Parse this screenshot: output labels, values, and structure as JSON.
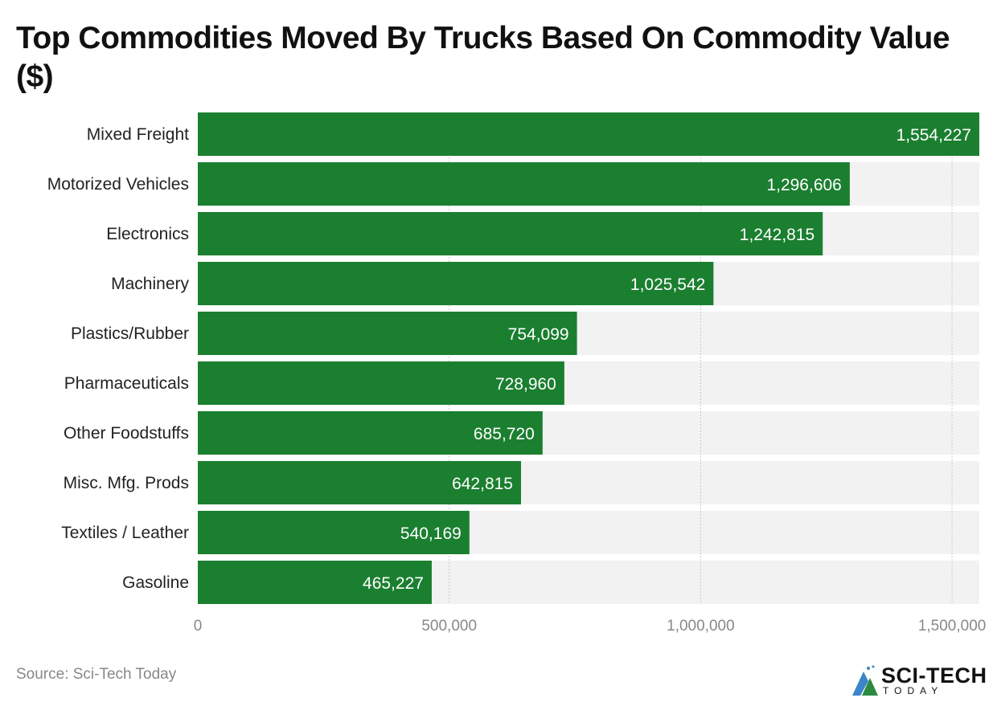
{
  "chart_data": {
    "type": "bar",
    "orientation": "horizontal",
    "title": "Top Commodities Moved By Trucks Based On Commodity Value ($)",
    "categories": [
      "Mixed Freight",
      "Motorized Vehicles",
      "Electronics",
      "Machinery",
      "Plastics/Rubber",
      "Pharmaceuticals",
      "Other Foodstuffs",
      "Misc. Mfg. Prods",
      "Textiles / Leather",
      "Gasoline"
    ],
    "values": [
      1554227,
      1296606,
      1242815,
      1025542,
      754099,
      728960,
      685720,
      642815,
      540169,
      465227
    ],
    "value_labels": [
      "1,554,227",
      "1,296,606",
      "1,242,815",
      "1,025,542",
      "754,099",
      "728,960",
      "685,720",
      "642,815",
      "540,169",
      "465,227"
    ],
    "xlim": [
      0,
      1554227
    ],
    "xticks": [
      0,
      500000,
      1000000,
      1500000
    ],
    "xtick_labels": [
      "0",
      "500,000",
      "1,000,000",
      "1,500,000"
    ],
    "grid": true,
    "colors": {
      "bar": "#1b7f30",
      "track": "#f2f2f2",
      "grid": "#c8c8c8"
    }
  },
  "source": "Source: Sci-Tech Today",
  "logo": {
    "main": "SCI-TECH",
    "sub": "TODAY"
  }
}
